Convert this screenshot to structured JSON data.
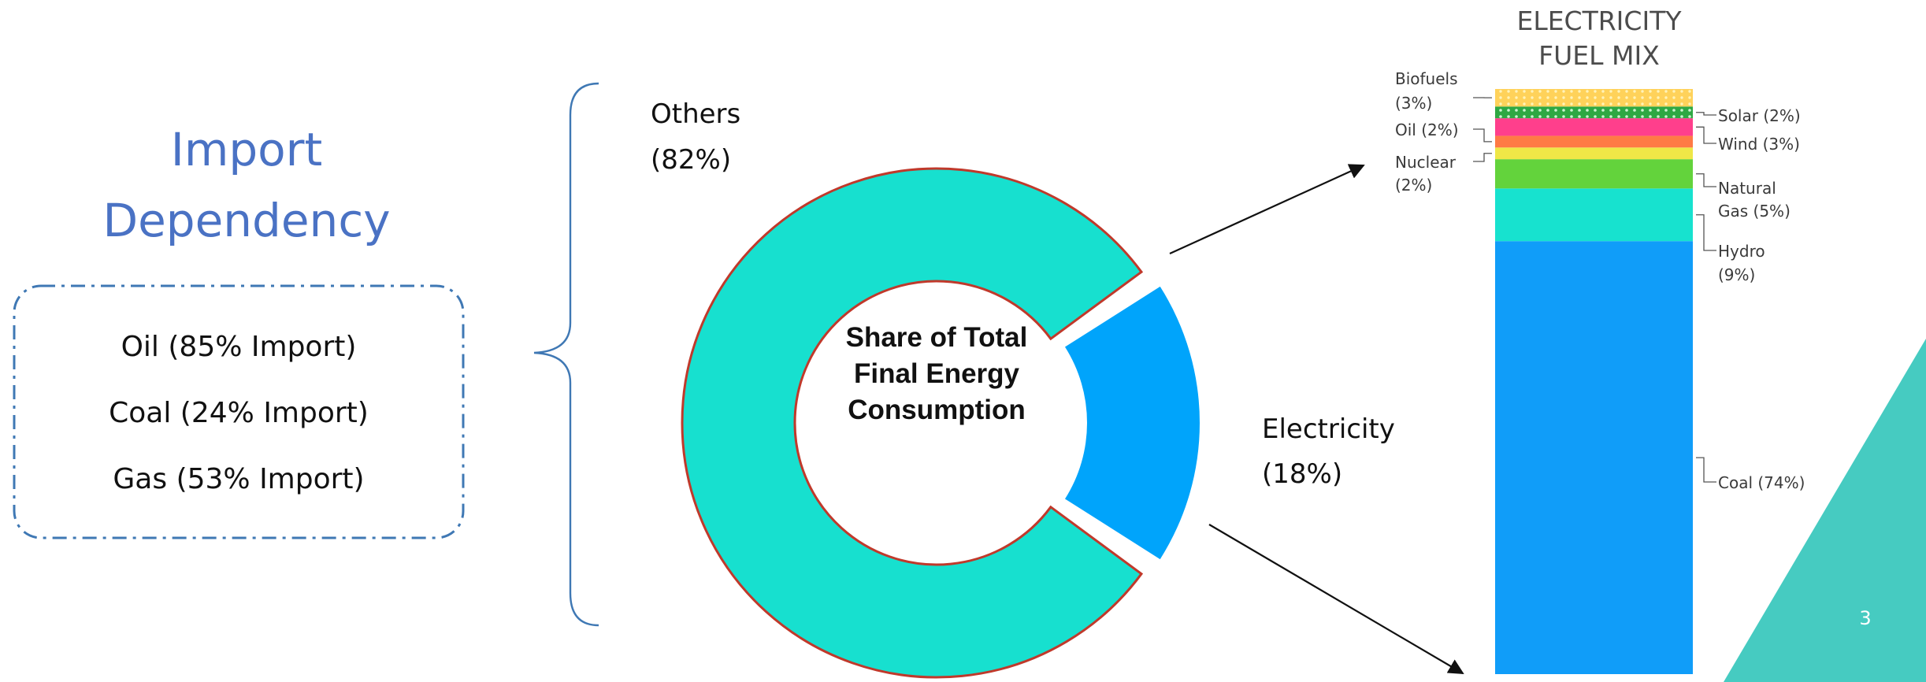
{
  "slide": {
    "title_lines": [
      "Import",
      "Dependency"
    ],
    "page_number": "3"
  },
  "import_dependency": {
    "items": [
      "Oil  (85% Import)",
      "Coal (24% Import)",
      "Gas (53% Import)"
    ]
  },
  "colors": {
    "title_blue": "#4a72c4",
    "box_border": "#3f78b4",
    "teal": "#17e0cf",
    "blue": "#00a4fb",
    "donut_outline": "#c0392b",
    "accent_triangle": "#46cbc1",
    "coal": "#109df9",
    "hydro": "#17e2cf",
    "natural_gas": "#63d33c",
    "nuclear": "#efe747",
    "oil": "#ff7a45",
    "wind": "#ff3f8c",
    "solar": "#2ea843",
    "biofuels": "#ffd25a"
  },
  "chart_data": [
    {
      "type": "pie",
      "title": "",
      "center_label": [
        "Share of Total",
        "Final Energy",
        "Consumption"
      ],
      "slices": [
        {
          "label_lines": [
            "Others",
            "(82%)"
          ],
          "value": 82
        },
        {
          "label_lines": [
            "Electricity",
            "(18%)"
          ],
          "value": 18
        }
      ]
    },
    {
      "type": "bar",
      "title": [
        "ELECTRICITY",
        "FUEL MIX"
      ],
      "categories": [
        "Coal",
        "Hydro",
        "Natural Gas",
        "Nuclear",
        "Oil",
        "Wind",
        "Solar",
        "Biofuels"
      ],
      "values": [
        74,
        9,
        5,
        2,
        2,
        3,
        2,
        3
      ],
      "unit": "%",
      "stacked": true,
      "segments": [
        {
          "name": "Coal",
          "value": 74,
          "label_lines": [
            "Coal (74%)"
          ],
          "side": "right"
        },
        {
          "name": "Hydro",
          "value": 9,
          "label_lines": [
            "Hydro",
            "(9%)"
          ],
          "side": "right"
        },
        {
          "name": "Natural Gas",
          "value": 5,
          "label_lines": [
            "Natural",
            "Gas (5%)"
          ],
          "side": "right"
        },
        {
          "name": "Nuclear",
          "value": 2,
          "label_lines": [
            "Nuclear",
            "(2%)"
          ],
          "side": "left"
        },
        {
          "name": "Oil",
          "value": 2,
          "label_lines": [
            "Oil (2%)"
          ],
          "side": "left"
        },
        {
          "name": "Wind",
          "value": 3,
          "label_lines": [
            "Wind (3%)"
          ],
          "side": "right"
        },
        {
          "name": "Solar",
          "value": 2,
          "label_lines": [
            "Solar (2%)"
          ],
          "side": "right"
        },
        {
          "name": "Biofuels",
          "value": 3,
          "label_lines": [
            "Biofuels",
            "(3%)"
          ],
          "side": "left"
        }
      ]
    }
  ]
}
